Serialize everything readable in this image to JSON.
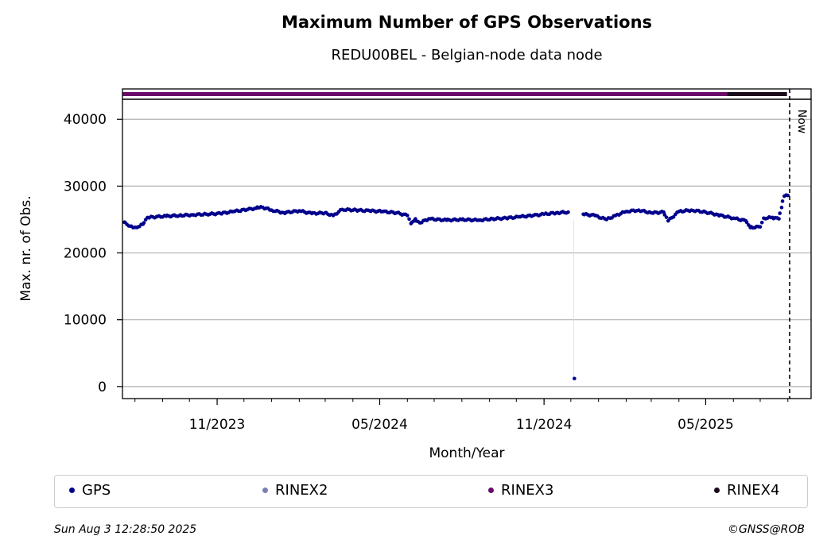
{
  "chart_data": {
    "type": "scatter",
    "title": "Maximum Number of GPS Observations",
    "subtitle": "REDU00BEL - Belgian-node data node",
    "xlabel": "Month/Year",
    "ylabel": "Max. nr. of Obs.",
    "ylim": [
      -1800,
      43000
    ],
    "yticks": [
      0,
      10000,
      20000,
      30000,
      40000
    ],
    "xlim": [
      "2023-07-18",
      "2025-08-27"
    ],
    "xticks": [
      {
        "date": "2023-11-01",
        "label": "11/2023"
      },
      {
        "date": "2024-05-01",
        "label": "05/2024"
      },
      {
        "date": "2024-11-01",
        "label": "11/2024"
      },
      {
        "date": "2025-05-01",
        "label": "05/2025"
      }
    ],
    "grid": "horizontal",
    "now_date": "2025-08-03",
    "now_label": "Now",
    "series": [
      {
        "name": "GPS",
        "color": "#00008b",
        "points": [
          [
            "2023-07-20",
            24600
          ],
          [
            "2023-07-27",
            24000
          ],
          [
            "2023-08-03",
            23800
          ],
          [
            "2023-08-10",
            24300
          ],
          [
            "2023-08-15",
            25300
          ],
          [
            "2023-08-25",
            25400
          ],
          [
            "2023-09-05",
            25500
          ],
          [
            "2023-09-20",
            25600
          ],
          [
            "2023-10-05",
            25700
          ],
          [
            "2023-10-20",
            25800
          ],
          [
            "2023-11-05",
            25900
          ],
          [
            "2023-11-20",
            26200
          ],
          [
            "2023-12-05",
            26500
          ],
          [
            "2023-12-15",
            26700
          ],
          [
            "2023-12-20",
            26900
          ],
          [
            "2024-01-01",
            26400
          ],
          [
            "2024-01-15",
            26000
          ],
          [
            "2024-02-01",
            26300
          ],
          [
            "2024-02-15",
            25900
          ],
          [
            "2024-03-01",
            26000
          ],
          [
            "2024-03-10",
            25600
          ],
          [
            "2024-03-20",
            26500
          ],
          [
            "2024-04-05",
            26400
          ],
          [
            "2024-04-20",
            26300
          ],
          [
            "2024-05-05",
            26200
          ],
          [
            "2024-05-20",
            26000
          ],
          [
            "2024-06-01",
            25600
          ],
          [
            "2024-06-05",
            24400
          ],
          [
            "2024-06-10",
            25100
          ],
          [
            "2024-06-15",
            24500
          ],
          [
            "2024-06-25",
            25100
          ],
          [
            "2024-07-15",
            24900
          ],
          [
            "2024-08-01",
            25000
          ],
          [
            "2024-08-20",
            24900
          ],
          [
            "2024-09-05",
            25100
          ],
          [
            "2024-09-20",
            25200
          ],
          [
            "2024-10-05",
            25400
          ],
          [
            "2024-10-20",
            25600
          ],
          [
            "2024-11-01",
            25800
          ],
          [
            "2024-11-15",
            26000
          ],
          [
            "2024-11-28",
            26100
          ],
          [
            "2024-12-05",
            1200
          ],
          [
            "2024-12-15",
            25800
          ],
          [
            "2024-12-28",
            25600
          ],
          [
            "2025-01-10",
            25000
          ],
          [
            "2025-01-20",
            25600
          ],
          [
            "2025-02-01",
            26200
          ],
          [
            "2025-02-15",
            26400
          ],
          [
            "2025-03-01",
            26000
          ],
          [
            "2025-03-15",
            26100
          ],
          [
            "2025-03-20",
            24800
          ],
          [
            "2025-04-01",
            26200
          ],
          [
            "2025-04-15",
            26400
          ],
          [
            "2025-05-01",
            26100
          ],
          [
            "2025-05-15",
            25700
          ],
          [
            "2025-06-01",
            25200
          ],
          [
            "2025-06-15",
            24800
          ],
          [
            "2025-06-20",
            23800
          ],
          [
            "2025-07-01",
            23900
          ],
          [
            "2025-07-05",
            25200
          ],
          [
            "2025-07-15",
            25300
          ],
          [
            "2025-07-22",
            25100
          ],
          [
            "2025-07-25",
            26800
          ],
          [
            "2025-07-28",
            28500
          ],
          [
            "2025-08-01",
            28600
          ]
        ]
      },
      {
        "name": "RINEX2",
        "color": "#7b7fb8",
        "points": []
      },
      {
        "name": "RINEX3",
        "color": "#6a0b6a",
        "points": [],
        "availability": [
          "2023-07-18",
          "2025-05-25"
        ]
      },
      {
        "name": "RINEX4",
        "color": "#1a0a1a",
        "points": [],
        "availability": [
          "2025-05-25",
          "2025-07-31"
        ]
      }
    ]
  },
  "legend": {
    "items": [
      {
        "label": "GPS",
        "color": "#00008b"
      },
      {
        "label": "RINEX2",
        "color": "#7b7fb8"
      },
      {
        "label": "RINEX3",
        "color": "#6a0b6a"
      },
      {
        "label": "RINEX4",
        "color": "#1a0a1a"
      }
    ]
  },
  "footer": {
    "timestamp": "Sun Aug  3 12:28:50 2025",
    "copyright": "©GNSS@ROB"
  }
}
